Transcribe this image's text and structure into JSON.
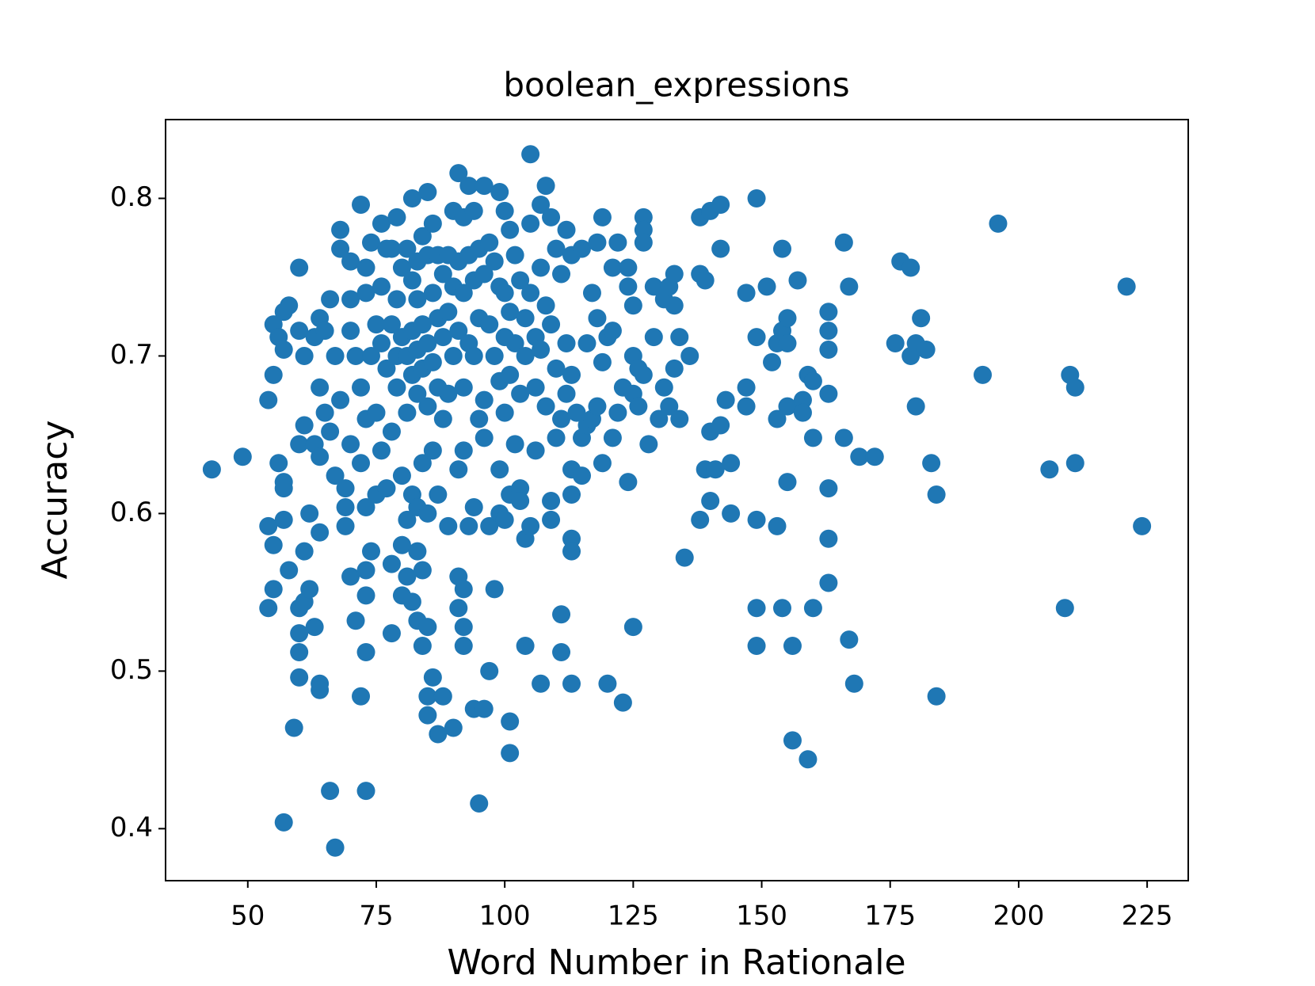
{
  "chart_data": {
    "type": "scatter",
    "title": "boolean_expressions",
    "xlabel": "Word Number in Rationale",
    "ylabel": "Accuracy",
    "color": "#1f77b4",
    "xlim": [
      34,
      233
    ],
    "ylim": [
      0.367,
      0.85
    ],
    "xticks": [
      50,
      75,
      100,
      125,
      150,
      175,
      200,
      225
    ],
    "yticks": [
      0.4,
      0.5,
      0.6,
      0.7,
      0.8
    ],
    "grid": false,
    "x": [
      43,
      49,
      54,
      54,
      54,
      55,
      55,
      55,
      55,
      56,
      56,
      57,
      57,
      57,
      57,
      57,
      57,
      58,
      58,
      59,
      60,
      60,
      60,
      60,
      60,
      60,
      60,
      61,
      61,
      61,
      61,
      62,
      62,
      63,
      63,
      63,
      64,
      64,
      64,
      64,
      64,
      64,
      65,
      65,
      66,
      66,
      66,
      67,
      67,
      67,
      68,
      68,
      68,
      69,
      69,
      69,
      70,
      70,
      70,
      70,
      70,
      71,
      71,
      72,
      72,
      72,
      72,
      73,
      73,
      73,
      73,
      73,
      73,
      73,
      73,
      74,
      74,
      74,
      75,
      75,
      75,
      76,
      76,
      76,
      76,
      77,
      77,
      77,
      78,
      78,
      78,
      78,
      78,
      79,
      79,
      79,
      79,
      80,
      80,
      80,
      80,
      80,
      81,
      81,
      81,
      81,
      81,
      82,
      82,
      82,
      82,
      82,
      82,
      83,
      83,
      83,
      83,
      83,
      83,
      83,
      84,
      84,
      84,
      84,
      84,
      84,
      85,
      85,
      85,
      85,
      85,
      85,
      85,
      85,
      86,
      86,
      86,
      86,
      86,
      87,
      87,
      87,
      87,
      87,
      88,
      88,
      88,
      88,
      89,
      89,
      89,
      89,
      90,
      90,
      90,
      90,
      91,
      91,
      91,
      91,
      91,
      91,
      92,
      92,
      92,
      92,
      92,
      92,
      92,
      93,
      93,
      93,
      93,
      94,
      94,
      94,
      94,
      94,
      95,
      95,
      95,
      95,
      96,
      96,
      96,
      96,
      96,
      97,
      97,
      97,
      97,
      98,
      98,
      98,
      99,
      99,
      99,
      99,
      99,
      100,
      100,
      100,
      100,
      100,
      101,
      101,
      101,
      101,
      101,
      101,
      102,
      102,
      102,
      103,
      103,
      103,
      103,
      104,
      104,
      104,
      104,
      105,
      105,
      105,
      105,
      106,
      106,
      106,
      107,
      107,
      107,
      107,
      108,
      108,
      108,
      109,
      109,
      109,
      109,
      110,
      110,
      110,
      111,
      111,
      111,
      111,
      112,
      112,
      112,
      113,
      113,
      113,
      113,
      113,
      113,
      113,
      114,
      115,
      115,
      115,
      116,
      116,
      117,
      117,
      118,
      118,
      118,
      119,
      119,
      119,
      120,
      120,
      121,
      121,
      121,
      122,
      122,
      123,
      123,
      124,
      124,
      124,
      125,
      125,
      125,
      125,
      126,
      126,
      127,
      127,
      127,
      127,
      128,
      129,
      129,
      130,
      131,
      131,
      132,
      132,
      133,
      133,
      133,
      134,
      134,
      135,
      136,
      138,
      138,
      138,
      139,
      139,
      140,
      140,
      140,
      141,
      142,
      142,
      142,
      143,
      144,
      144,
      147,
      147,
      147,
      149,
      149,
      149,
      149,
      149,
      151,
      152,
      153,
      153,
      153,
      154,
      154,
      154,
      155,
      155,
      155,
      155,
      156,
      156,
      157,
      158,
      158,
      159,
      159,
      160,
      160,
      160,
      163,
      163,
      163,
      163,
      163,
      163,
      163,
      166,
      166,
      167,
      167,
      168,
      169,
      172,
      176,
      177,
      179,
      179,
      180,
      180,
      181,
      182,
      183,
      184,
      184,
      193,
      196,
      206,
      209,
      210,
      211,
      211,
      221,
      224
    ],
    "values": [
      0.628,
      0.636,
      0.672,
      0.592,
      0.54,
      0.72,
      0.688,
      0.58,
      0.552,
      0.712,
      0.632,
      0.728,
      0.704,
      0.62,
      0.616,
      0.596,
      0.404,
      0.732,
      0.564,
      0.464,
      0.756,
      0.716,
      0.644,
      0.54,
      0.524,
      0.512,
      0.496,
      0.7,
      0.656,
      0.576,
      0.544,
      0.6,
      0.552,
      0.712,
      0.644,
      0.528,
      0.724,
      0.68,
      0.636,
      0.588,
      0.492,
      0.488,
      0.716,
      0.664,
      0.736,
      0.652,
      0.424,
      0.7,
      0.624,
      0.388,
      0.78,
      0.768,
      0.672,
      0.616,
      0.604,
      0.592,
      0.76,
      0.736,
      0.716,
      0.644,
      0.56,
      0.7,
      0.532,
      0.796,
      0.68,
      0.632,
      0.484,
      0.756,
      0.74,
      0.66,
      0.604,
      0.564,
      0.548,
      0.512,
      0.424,
      0.772,
      0.7,
      0.576,
      0.72,
      0.664,
      0.612,
      0.784,
      0.744,
      0.708,
      0.64,
      0.768,
      0.692,
      0.616,
      0.768,
      0.72,
      0.652,
      0.568,
      0.524,
      0.788,
      0.736,
      0.7,
      0.68,
      0.756,
      0.712,
      0.624,
      0.58,
      0.548,
      0.768,
      0.7,
      0.664,
      0.596,
      0.56,
      0.8,
      0.748,
      0.716,
      0.688,
      0.612,
      0.544,
      0.76,
      0.736,
      0.704,
      0.676,
      0.604,
      0.576,
      0.532,
      0.776,
      0.72,
      0.692,
      0.632,
      0.564,
      0.516,
      0.804,
      0.764,
      0.708,
      0.668,
      0.6,
      0.528,
      0.484,
      0.472,
      0.784,
      0.74,
      0.696,
      0.64,
      0.496,
      0.764,
      0.724,
      0.68,
      0.612,
      0.46,
      0.752,
      0.712,
      0.66,
      0.484,
      0.764,
      0.728,
      0.676,
      0.592,
      0.792,
      0.744,
      0.7,
      0.464,
      0.816,
      0.76,
      0.716,
      0.628,
      0.56,
      0.54,
      0.788,
      0.74,
      0.68,
      0.64,
      0.552,
      0.528,
      0.516,
      0.808,
      0.764,
      0.708,
      0.592,
      0.792,
      0.748,
      0.7,
      0.604,
      0.476,
      0.768,
      0.724,
      0.66,
      0.416,
      0.808,
      0.752,
      0.672,
      0.648,
      0.476,
      0.772,
      0.72,
      0.592,
      0.5,
      0.76,
      0.7,
      0.552,
      0.804,
      0.744,
      0.684,
      0.628,
      0.6,
      0.792,
      0.74,
      0.712,
      0.664,
      0.596,
      0.78,
      0.728,
      0.688,
      0.612,
      0.468,
      0.448,
      0.764,
      0.708,
      0.644,
      0.748,
      0.676,
      0.616,
      0.608,
      0.724,
      0.7,
      0.584,
      0.516,
      0.828,
      0.784,
      0.74,
      0.592,
      0.712,
      0.68,
      0.64,
      0.796,
      0.756,
      0.704,
      0.492,
      0.808,
      0.732,
      0.668,
      0.788,
      0.72,
      0.608,
      0.596,
      0.768,
      0.692,
      0.648,
      0.752,
      0.66,
      0.536,
      0.512,
      0.78,
      0.708,
      0.676,
      0.764,
      0.688,
      0.628,
      0.612,
      0.584,
      0.576,
      0.492,
      0.664,
      0.768,
      0.648,
      0.624,
      0.708,
      0.656,
      0.74,
      0.66,
      0.772,
      0.724,
      0.668,
      0.788,
      0.696,
      0.632,
      0.712,
      0.492,
      0.756,
      0.716,
      0.648,
      0.772,
      0.664,
      0.68,
      0.48,
      0.756,
      0.744,
      0.62,
      0.732,
      0.7,
      0.676,
      0.528,
      0.692,
      0.668,
      0.788,
      0.78,
      0.772,
      0.688,
      0.644,
      0.744,
      0.712,
      0.66,
      0.68,
      0.736,
      0.668,
      0.744,
      0.752,
      0.732,
      0.692,
      0.712,
      0.66,
      0.572,
      0.7,
      0.788,
      0.752,
      0.596,
      0.748,
      0.628,
      0.792,
      0.652,
      0.608,
      0.628,
      0.796,
      0.768,
      0.656,
      0.672,
      0.632,
      0.6,
      0.74,
      0.68,
      0.668,
      0.8,
      0.712,
      0.596,
      0.54,
      0.516,
      0.744,
      0.696,
      0.708,
      0.66,
      0.592,
      0.768,
      0.716,
      0.54,
      0.724,
      0.708,
      0.668,
      0.62,
      0.516,
      0.456,
      0.748,
      0.672,
      0.664,
      0.688,
      0.444,
      0.684,
      0.648,
      0.54,
      0.728,
      0.716,
      0.704,
      0.676,
      0.616,
      0.584,
      0.556,
      0.772,
      0.648,
      0.744,
      0.52,
      0.492,
      0.636,
      0.636,
      0.708,
      0.76,
      0.756,
      0.7,
      0.708,
      0.668,
      0.724,
      0.704,
      0.632,
      0.612,
      0.484,
      0.688,
      0.784,
      0.628,
      0.54,
      0.688,
      0.68,
      0.632,
      0.744,
      0.592
    ]
  }
}
